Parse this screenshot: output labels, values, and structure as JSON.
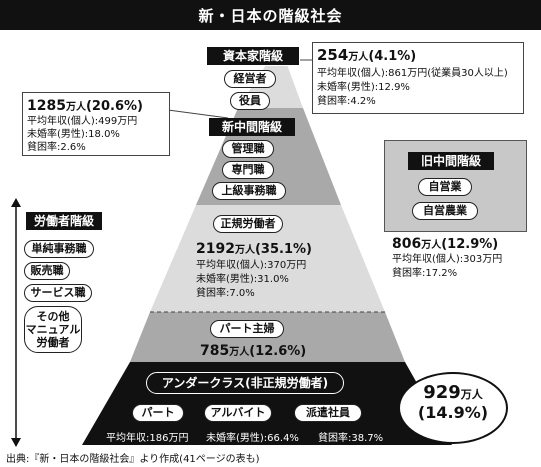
{
  "title": "新・日本の階級社会",
  "capitalist": {
    "header": "資本家階級",
    "roles": [
      "経営者",
      "役員"
    ],
    "population": "254",
    "unit": "万人",
    "percent": "(4.1%)",
    "stats": [
      "平均年収(個人):861万円(従業員30人以上)",
      "未婚率(男性):12.9%",
      "貧困率:4.2%"
    ]
  },
  "new_middle": {
    "header": "新中間階級",
    "roles": [
      "管理職",
      "専門職",
      "上級事務職"
    ],
    "population": "1285",
    "unit": "万人",
    "percent": "(20.6%)",
    "stats": [
      "平均年収(個人):499万円",
      "未婚率(男性):18.0%",
      "貧困率:2.6%"
    ]
  },
  "old_middle": {
    "header": "旧中間階級",
    "roles": [
      "自営業",
      "自営農業"
    ],
    "population": "806",
    "unit": "万人",
    "percent": "(12.9%)",
    "stats": [
      "平均年収(個人):303万円",
      "貧困率:17.2%"
    ]
  },
  "working": {
    "header": "労働者階級",
    "roles": [
      "単純事務職",
      "販売職",
      "サービス職",
      "その他\nマニュアル\n労働者"
    ],
    "regular_label": "正規労働者",
    "regular_population": "2192",
    "regular_unit": "万人",
    "regular_percent": "(35.1%)",
    "regular_stats": [
      "平均年収(個人):370万円",
      "未婚率(男性):31.0%",
      "貧困率:7.0%"
    ],
    "part_label": "パート主婦",
    "part_population": "785",
    "part_unit": "万人",
    "part_percent": "(12.6%)"
  },
  "underclass": {
    "header": "アンダークラス(非正規労働者)",
    "roles": [
      "パート",
      "アルバイト",
      "派遣社員"
    ],
    "population": "929",
    "unit": "万人",
    "percent": "(14.9%)",
    "stats": [
      "平均年収:186万円",
      "未婚率(男性):66.4%",
      "貧困率:38.7%"
    ]
  },
  "source": "出典:『新・日本の階級社会』より作成(41ページの表も)",
  "colors": {
    "black": "#111111",
    "dark_gray": "#4a4a4a",
    "mid_gray": "#a9a9a9",
    "light_gray": "#dcdcdc",
    "old_middle_bg": "#c8c8c8"
  }
}
